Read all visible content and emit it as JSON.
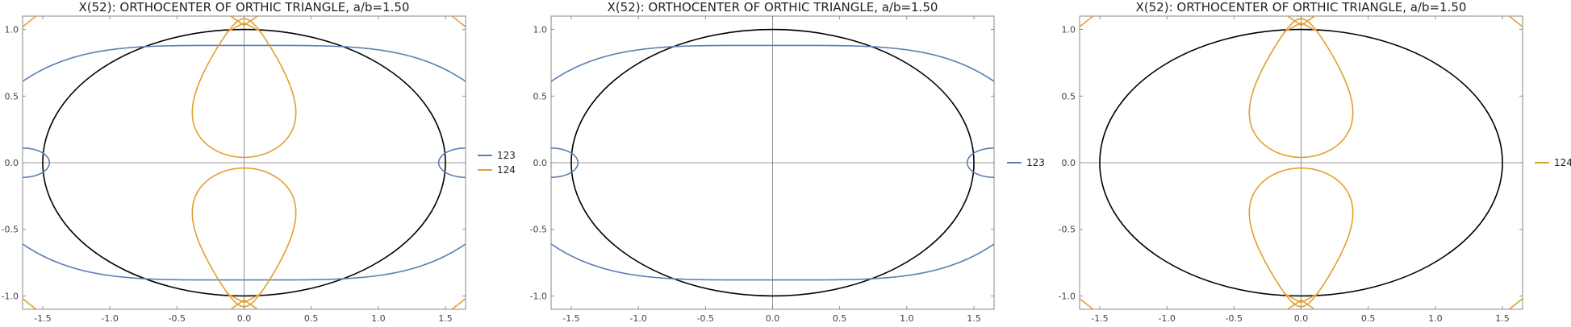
{
  "chart_data": [
    {
      "type": "line",
      "title": "X(52): ORTHOCENTER OF ORTHIC TRIANGLE, a/b=1.50",
      "xlim": [
        -1.65,
        1.65
      ],
      "ylim": [
        -1.1,
        1.1
      ],
      "xticks": [
        -1.5,
        -1.0,
        -0.5,
        0.0,
        0.5,
        1.0,
        1.5
      ],
      "xtick_labels": [
        "-1.5",
        "-1.0",
        "-0.5",
        "0.0",
        "0.5",
        "1.0",
        "1.5"
      ],
      "yticks": [
        -1.0,
        -0.5,
        0.0,
        0.5,
        1.0
      ],
      "ytick_labels": [
        "-1.0",
        "-0.5",
        "0.0",
        "0.5",
        "1.0"
      ],
      "legend_position": "right",
      "series": [
        {
          "name": "123",
          "color": "#5A7FB0",
          "shape": "ellipse-locus"
        },
        {
          "name": "124",
          "color": "#E0A030",
          "shape": "teardrop-locus"
        }
      ]
    },
    {
      "type": "line",
      "title": "X(52): ORTHOCENTER OF ORTHIC TRIANGLE, a/b=1.50",
      "xlim": [
        -1.65,
        1.65
      ],
      "ylim": [
        -1.1,
        1.1
      ],
      "xticks": [
        -1.5,
        -1.0,
        -0.5,
        0.0,
        0.5,
        1.0,
        1.5
      ],
      "xtick_labels": [
        "-1.5",
        "-1.0",
        "-0.5",
        "0.0",
        "0.5",
        "1.0",
        "1.5"
      ],
      "yticks": [
        -1.0,
        -0.5,
        0.0,
        0.5,
        1.0
      ],
      "ytick_labels": [
        "-1.0",
        "-0.5",
        "0.0",
        "0.5",
        "1.0"
      ],
      "legend_position": "right",
      "series": [
        {
          "name": "123",
          "color": "#5A7FB0",
          "shape": "ellipse-locus"
        }
      ]
    },
    {
      "type": "line",
      "title": "X(52): ORTHOCENTER OF ORTHIC TRIANGLE, a/b=1.50",
      "xlim": [
        -1.65,
        1.65
      ],
      "ylim": [
        -1.1,
        1.1
      ],
      "xticks": [
        -1.5,
        -1.0,
        -0.5,
        0.0,
        0.5,
        1.0,
        1.5
      ],
      "xtick_labels": [
        "-1.5",
        "-1.0",
        "-0.5",
        "0.0",
        "0.5",
        "1.0",
        "1.5"
      ],
      "yticks": [
        -1.0,
        -0.5,
        0.0,
        0.5,
        1.0
      ],
      "ytick_labels": [
        "-1.0",
        "-0.5",
        "0.0",
        "0.5",
        "1.0"
      ],
      "legend_position": "right",
      "series": [
        {
          "name": "124",
          "color": "#E0A030",
          "shape": "teardrop-locus"
        }
      ]
    }
  ],
  "ellipse": {
    "a": 1.5,
    "b": 1.0,
    "color": "#000000"
  }
}
